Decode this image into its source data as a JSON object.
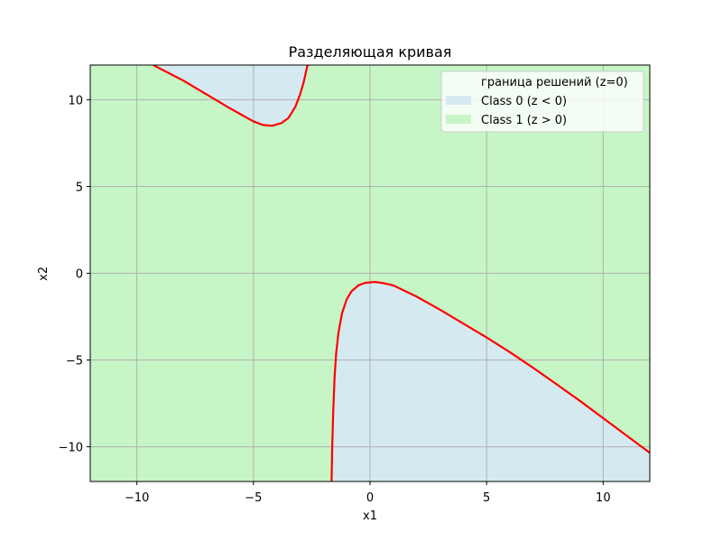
{
  "chart_data": {
    "type": "area",
    "title": "Разделяющая кривая",
    "xlabel": "x1",
    "ylabel": "x2",
    "xlim": [
      -12,
      12
    ],
    "ylim": [
      -12,
      12
    ],
    "xticks": [
      -10,
      -5,
      0,
      5,
      10
    ],
    "xtick_labels": [
      "−10",
      "−5",
      "0",
      "5",
      "10"
    ],
    "yticks": [
      -10,
      -5,
      0,
      5,
      10
    ],
    "ytick_labels": [
      "−10",
      "−5",
      "0",
      "5",
      "10"
    ],
    "grid": true,
    "legend_position": "top-right",
    "colors": {
      "class0": "#d5eaf0",
      "class1": "#c6f6c6",
      "boundary": "#ff0000",
      "grid": "#b0b0b0"
    },
    "legend": [
      {
        "label": "граница решений (z=0)",
        "swatch": "none"
      },
      {
        "label": "Class 0 (z < 0)",
        "swatch": "class0"
      },
      {
        "label": "Class 1 (z > 0)",
        "swatch": "class1"
      }
    ],
    "series": [
      {
        "name": "граница решений (z=0)",
        "kind": "line",
        "color": "#ff0000",
        "branches": [
          {
            "x": [
              -9.3,
              -8.0,
              -7.0,
              -6.0,
              -5.0,
              -4.6,
              -4.2,
              -3.8,
              -3.5,
              -3.2,
              -3.0,
              -2.85,
              -2.75,
              -2.7,
              -2.66
            ],
            "y": [
              12.0,
              11.1,
              10.3,
              9.5,
              8.75,
              8.55,
              8.5,
              8.65,
              8.95,
              9.6,
              10.3,
              11.0,
              11.6,
              11.9,
              12.0
            ]
          },
          {
            "x": [
              -1.65,
              -1.62,
              -1.58,
              -1.52,
              -1.45,
              -1.35,
              -1.2,
              -1.0,
              -0.8,
              -0.5,
              -0.2,
              0.2,
              0.5,
              1.0,
              2.0,
              3.0,
              4.0,
              5.0,
              6.0,
              7.0,
              8.0,
              9.0,
              10.0,
              11.0,
              12.0
            ],
            "y": [
              -12.0,
              -10.0,
              -8.0,
              -6.0,
              -4.6,
              -3.4,
              -2.3,
              -1.5,
              -1.05,
              -0.7,
              -0.55,
              -0.5,
              -0.55,
              -0.7,
              -1.35,
              -2.1,
              -2.9,
              -3.7,
              -4.55,
              -5.45,
              -6.4,
              -7.35,
              -8.35,
              -9.35,
              -10.35
            ]
          }
        ]
      }
    ]
  }
}
